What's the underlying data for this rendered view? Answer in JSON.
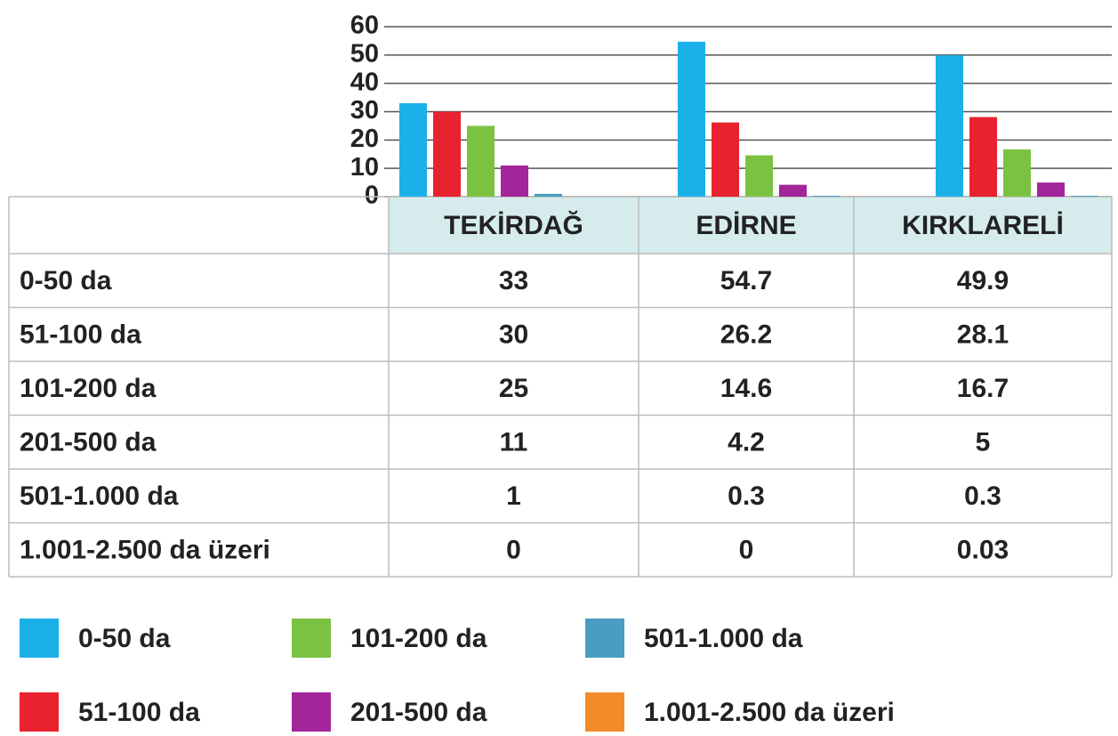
{
  "chart_data": {
    "type": "bar",
    "categories": [
      "TEKİRDAĞ",
      "EDİRNE",
      "KIRKLARELİ"
    ],
    "series": [
      {
        "name": "0-50 da",
        "color": "#1bb0e8",
        "values": [
          33,
          54.7,
          49.9
        ]
      },
      {
        "name": "51-100 da",
        "color": "#e8232f",
        "values": [
          30,
          26.2,
          28.1
        ]
      },
      {
        "name": "101-200 da",
        "color": "#7cc242",
        "values": [
          25,
          14.6,
          16.7
        ]
      },
      {
        "name": "201-500 da",
        "color": "#a3259a",
        "values": [
          11,
          4.2,
          5
        ]
      },
      {
        "name": "501-1.000 da",
        "color": "#4a9cc0",
        "values": [
          1,
          0.3,
          0.3
        ]
      },
      {
        "name": "1.001-2.500 da üzeri",
        "color": "#f28c28",
        "values": [
          0,
          0,
          0.03
        ]
      }
    ],
    "ylim": [
      0,
      60
    ],
    "yticks": [
      0,
      10,
      20,
      30,
      40,
      50,
      60
    ],
    "grid": true
  }
}
